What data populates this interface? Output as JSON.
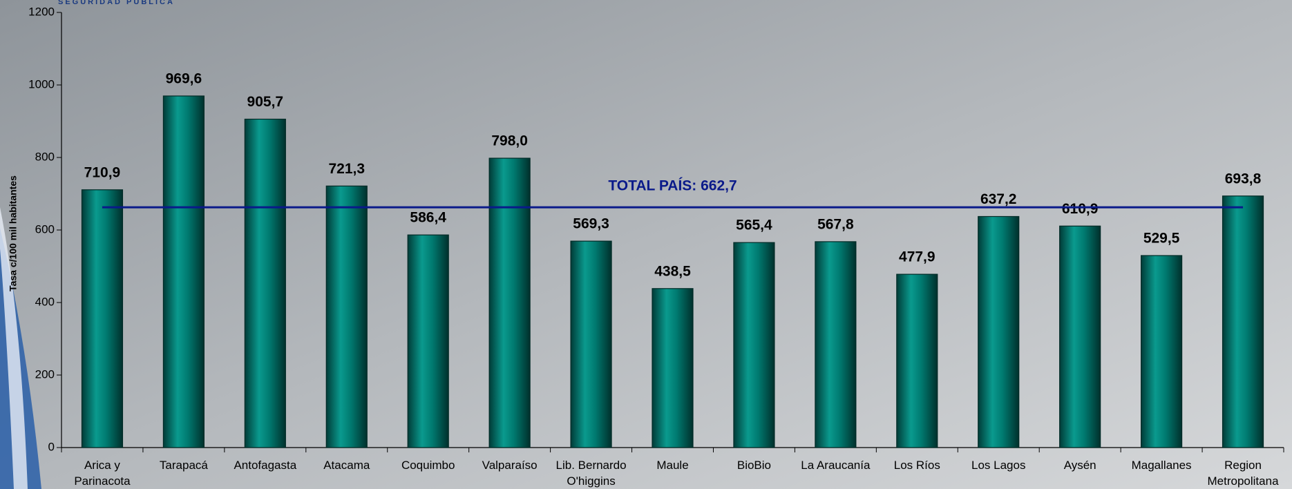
{
  "chart_data": {
    "type": "bar",
    "header": "SEGURIDAD PUBLICA",
    "ylabel": "Tasa c/100 mil habitantes",
    "categories": [
      "Arica y\nParinacota",
      "Tarapacá",
      "Antofagasta",
      "Atacama",
      "Coquimbo",
      "Valparaíso",
      "Lib. Bernardo\nO'higgins",
      "Maule",
      "BioBio",
      "La Araucanía",
      "Los Ríos",
      "Los Lagos",
      "Aysén",
      "Magallanes",
      "Region\nMetropolitana"
    ],
    "values": [
      710.9,
      969.6,
      905.7,
      721.3,
      586.4,
      798.0,
      569.3,
      438.5,
      565.4,
      567.8,
      477.9,
      637.2,
      610.9,
      529.5,
      693.8
    ],
    "value_labels": [
      "710,9",
      "969,6",
      "905,7",
      "721,3",
      "586,4",
      "798,0",
      "569,3",
      "438,5",
      "565,4",
      "567,8",
      "477,9",
      "637,2",
      "610,9",
      "529,5",
      "693,8"
    ],
    "color": "#007a70",
    "reference_line": {
      "value": 662.7,
      "label": "TOTAL PAÍS: 662,7",
      "color": "#0a1a8a"
    },
    "ylim": [
      0,
      1200
    ],
    "yticks": [
      0,
      200,
      400,
      600,
      800,
      1000,
      1200
    ]
  }
}
